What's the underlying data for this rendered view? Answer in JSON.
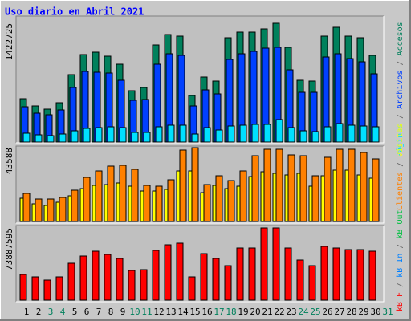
{
  "legend_separator": "/",
  "chart_data": [
    {
      "type": "bar",
      "title": "Uso diario en Abril 2021",
      "ylim": [
        0,
        1422725
      ],
      "yticks": [
        1422725
      ],
      "series": [
        {
          "name": "Accesos",
          "color": "#00805c",
          "values": [
            519102,
            432585,
            394133,
            471037,
            807492,
            1047817,
            1076656,
            1028591,
            932461,
            615232,
            653684,
            1163173,
            1288142,
            1268916,
            557554,
            778653,
            730588,
            1249690,
            1316981,
            1316981,
            1355433,
            1422725,
            1134334,
            740201,
            730588,
            1268916,
            1374659,
            1268916,
            1249690,
            1038204,
            null
          ]
        },
        {
          "name": "Archivos",
          "color": "#0040ff",
          "values": [
            422972,
            346068,
            326842,
            384520,
            653684,
            845944,
            836331,
            826718,
            740201,
            499876,
            509489,
            932461,
            1057430,
            1038204,
            432585,
            624845,
            576780,
            990139,
            1057430,
            1086269,
            1124721,
            1134334,
            865170,
            596006,
            596006,
            1018978,
            1057430,
            999752,
            961300,
            817105,
            null
          ]
        },
        {
          "name": "Páginas",
          "color": "#00e0ff",
          "values": [
            105743,
            86517,
            76904,
            96130,
            134582,
            163421,
            173034,
            182647,
            173034,
            115356,
            115356,
            182647,
            201873,
            201873,
            96130,
            173034,
            144195,
            192260,
            201873,
            211486,
            211486,
            269164,
            173034,
            134582,
            124969,
            182647,
            221099,
            201873,
            192260,
            182647,
            null
          ]
        }
      ]
    },
    {
      "type": "bar",
      "ylim": [
        0,
        43588
      ],
      "yticks": [
        43588
      ],
      "series": [
        {
          "name": "Visitas",
          "color": "#ffff00",
          "values": [
            13740,
            10423,
            9476,
            11371,
            15161,
            19425,
            21320,
            21794,
            22741,
            20846,
            18004,
            18004,
            18951,
            29848,
            29848,
            17056,
            21320,
            19425,
            20846,
            26532,
            29374,
            28427,
            27479,
            28427,
            20846,
            27005,
            30322,
            30322,
            27479,
            25584,
            null
          ]
        },
        {
          "name": "Clientes",
          "color": "#ff8000",
          "values": [
            16582,
            13266,
            13266,
            14213,
            18477,
            26058,
            29848,
            32691,
            33165,
            30796,
            21320,
            20846,
            24637,
            42166,
            43588,
            21794,
            27005,
            24163,
            29848,
            38850,
            42640,
            42640,
            39324,
            38850,
            27005,
            37902,
            42640,
            42640,
            40745,
            36955,
            null
          ]
        }
      ]
    },
    {
      "type": "bar",
      "ylim": [
        0,
        73887595
      ],
      "yticks": [
        73887595
      ],
      "categories": [
        "1",
        "2",
        "3",
        "4",
        "5",
        "6",
        "7",
        "8",
        "9",
        "10",
        "11",
        "12",
        "13",
        "14",
        "15",
        "16",
        "17",
        "18",
        "19",
        "20",
        "21",
        "22",
        "23",
        "24",
        "25",
        "26",
        "27",
        "28",
        "29",
        "30",
        "31"
      ],
      "category_colors": [
        "#000000",
        "#000000",
        "#00805c",
        "#00805c",
        "#000000",
        "#000000",
        "#000000",
        "#000000",
        "#000000",
        "#00805c",
        "#00805c",
        "#000000",
        "#000000",
        "#000000",
        "#000000",
        "#000000",
        "#00805c",
        "#00805c",
        "#000000",
        "#000000",
        "#000000",
        "#000000",
        "#000000",
        "#00805c",
        "#00805c",
        "#000000",
        "#000000",
        "#000000",
        "#000000",
        "#000000",
        "#00805c"
      ],
      "series": [
        {
          "name": "kB F",
          "color": "#ff0000",
          "values": [
            26271136,
            23808217,
            20524325,
            23808217,
            37764758,
            45153515,
            50079353,
            46795461,
            42690596,
            30376001,
            31196974,
            50900326,
            56647137,
            58289083,
            23808217,
            47616434,
            42690596,
            35301839,
            53363245,
            53363245,
            73887595,
            73887595,
            53363245,
            41048650,
            35301839,
            55005191,
            53363245,
            51721299,
            51721299,
            50079353,
            null
          ]
        }
      ],
      "legend_extra": [
        {
          "name": "kB In",
          "color": "#0080ff"
        },
        {
          "name": "kB Out",
          "color": "#00c040"
        }
      ]
    }
  ]
}
